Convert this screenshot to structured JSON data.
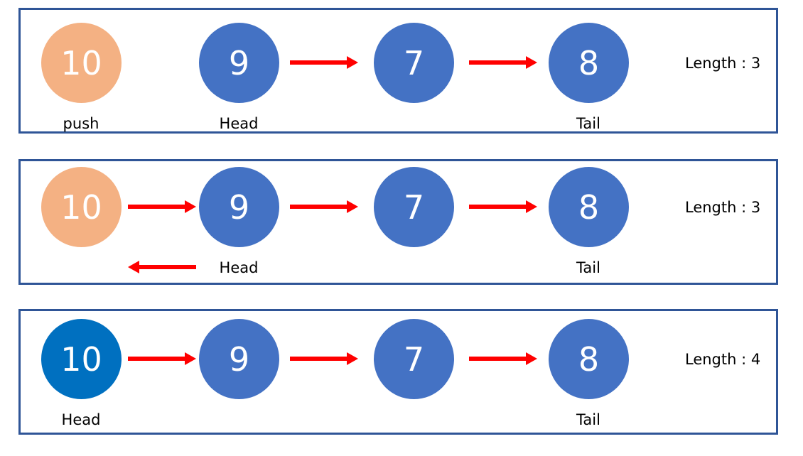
{
  "colors": {
    "panel_border": "#2f5597",
    "node_default": "#4472c4",
    "node_pushed": "#f4b183",
    "node_head": "#0070c0",
    "arrow": "#ff0000"
  },
  "rows": [
    {
      "nodes": [
        {
          "value": "10",
          "style": "pushed"
        },
        {
          "value": "9",
          "style": "default"
        },
        {
          "value": "7",
          "style": "default"
        },
        {
          "value": "8",
          "style": "default"
        }
      ],
      "labels": {
        "n0": "push",
        "n1": "Head",
        "n3": "Tail"
      },
      "length_text": "Length : 3"
    },
    {
      "nodes": [
        {
          "value": "10",
          "style": "pushed"
        },
        {
          "value": "9",
          "style": "default"
        },
        {
          "value": "7",
          "style": "default"
        },
        {
          "value": "8",
          "style": "default"
        }
      ],
      "labels": {
        "n1": "Head",
        "n3": "Tail"
      },
      "length_text": "Length : 3"
    },
    {
      "nodes": [
        {
          "value": "10",
          "style": "head"
        },
        {
          "value": "9",
          "style": "default"
        },
        {
          "value": "7",
          "style": "default"
        },
        {
          "value": "8",
          "style": "default"
        }
      ],
      "labels": {
        "n0": "Head",
        "n3": "Tail"
      },
      "length_text": "Length : 4"
    }
  ]
}
